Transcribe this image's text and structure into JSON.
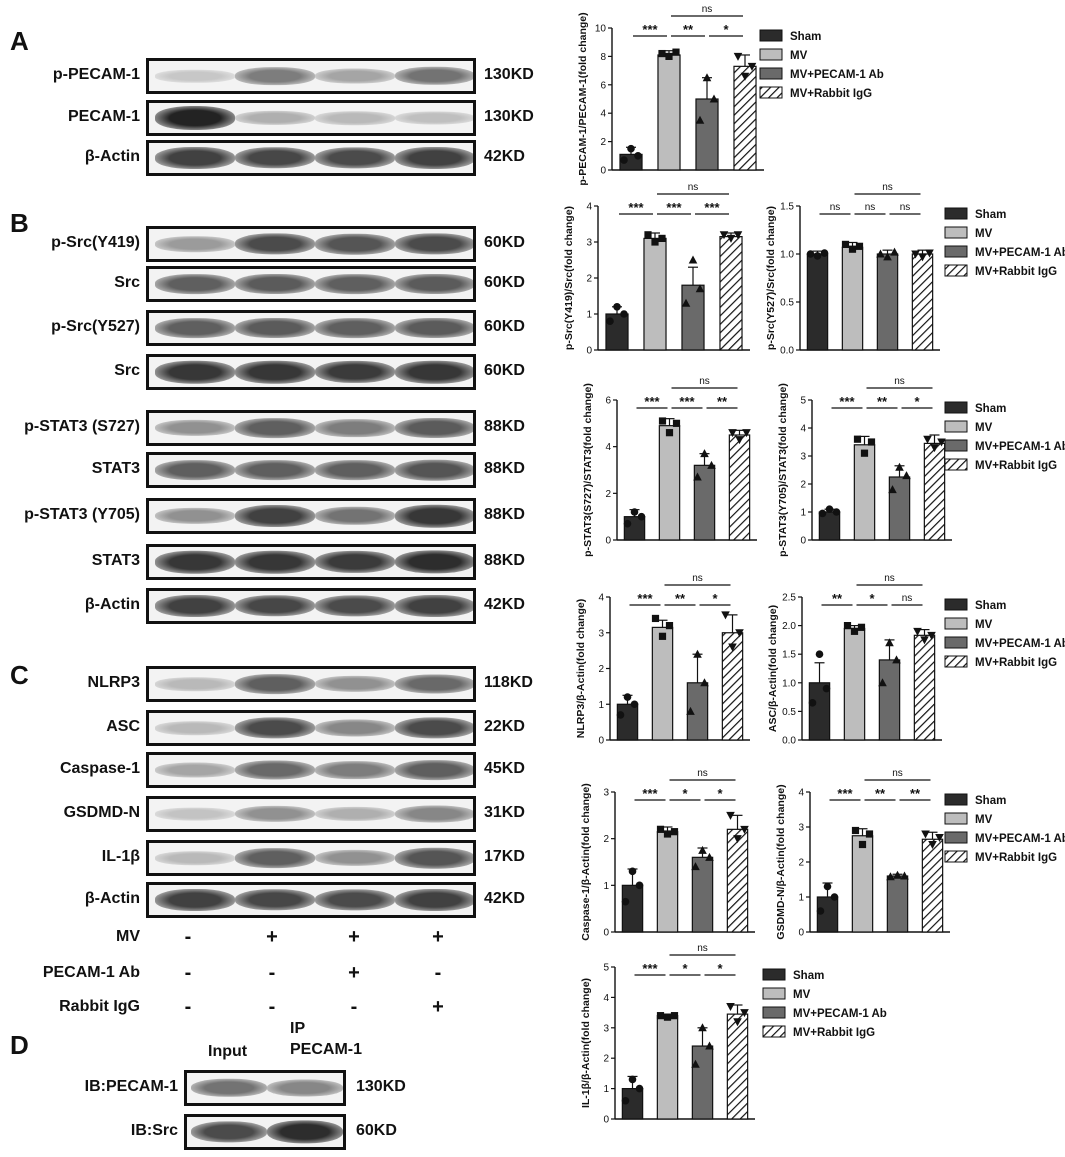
{
  "panels": {
    "A": "A",
    "B": "B",
    "C": "C",
    "D": "D"
  },
  "blots": [
    {
      "label": "p-PECAM-1",
      "kd": "130KD",
      "bands": [
        0.18,
        0.55,
        0.35,
        0.6
      ]
    },
    {
      "label": "PECAM-1",
      "kd": "130KD",
      "bands": [
        1.0,
        0.3,
        0.25,
        0.22
      ]
    },
    {
      "label": "β-Actin",
      "kd": "42KD",
      "bands": [
        0.85,
        0.82,
        0.8,
        0.85
      ]
    },
    {
      "label": "p-Src(Y419)",
      "kd": "60KD",
      "bands": [
        0.4,
        0.8,
        0.75,
        0.8
      ]
    },
    {
      "label": "Src",
      "kd": "60KD",
      "bands": [
        0.7,
        0.72,
        0.7,
        0.72
      ]
    },
    {
      "label": "p-Src(Y527)",
      "kd": "60KD",
      "bands": [
        0.7,
        0.72,
        0.7,
        0.72
      ]
    },
    {
      "label": "Src",
      "kd": "60KD",
      "bands": [
        0.9,
        0.9,
        0.88,
        0.9
      ]
    },
    {
      "label": "p-STAT3 (S727)",
      "kd": "88KD",
      "bands": [
        0.45,
        0.7,
        0.55,
        0.72
      ]
    },
    {
      "label": "STAT3",
      "kd": "88KD",
      "bands": [
        0.7,
        0.7,
        0.7,
        0.75
      ]
    },
    {
      "label": "p-STAT3 (Y705)",
      "kd": "88KD",
      "bands": [
        0.45,
        0.85,
        0.6,
        0.9
      ]
    },
    {
      "label": "STAT3",
      "kd": "88KD",
      "bands": [
        0.9,
        0.9,
        0.88,
        0.95
      ]
    },
    {
      "label": "β-Actin",
      "kd": "42KD",
      "bands": [
        0.85,
        0.82,
        0.8,
        0.85
      ]
    },
    {
      "label": "NLRP3",
      "kd": "118KD",
      "bands": [
        0.25,
        0.7,
        0.45,
        0.65
      ]
    },
    {
      "label": "ASC",
      "kd": "22KD",
      "bands": [
        0.25,
        0.8,
        0.5,
        0.8
      ]
    },
    {
      "label": "Caspase-1",
      "kd": "45KD",
      "bands": [
        0.35,
        0.65,
        0.55,
        0.7
      ]
    },
    {
      "label": "GSDMD-N",
      "kd": "31KD",
      "bands": [
        0.2,
        0.45,
        0.3,
        0.5
      ]
    },
    {
      "label": "IL-1β",
      "kd": "17KD",
      "bands": [
        0.25,
        0.7,
        0.45,
        0.75
      ]
    },
    {
      "label": "β-Actin",
      "kd": "42KD",
      "bands": [
        0.85,
        0.82,
        0.8,
        0.85
      ]
    }
  ],
  "treatments": [
    {
      "label": "MV",
      "values": [
        "-",
        "+",
        "+",
        "+"
      ]
    },
    {
      "label": "PECAM-1 Ab",
      "values": [
        "-",
        "-",
        "+",
        "-"
      ]
    },
    {
      "label": "Rabbit IgG",
      "values": [
        "-",
        "-",
        "-",
        "+"
      ]
    }
  ],
  "ip": {
    "input_label": "Input",
    "ip_label_1": "IP",
    "ip_label_2": "PECAM-1",
    "rows": [
      {
        "label": "IB:PECAM-1",
        "kd": "130KD",
        "bands": [
          0.6,
          0.5
        ]
      },
      {
        "label": "IB:Src",
        "kd": "60KD",
        "bands": [
          0.8,
          0.95
        ]
      }
    ]
  },
  "legend": [
    "Sham",
    "MV",
    "MV+PECAM-1 Ab",
    "MV+Rabbit IgG"
  ],
  "colors": {
    "sham": "#2b2b2b",
    "mv": "#bdbdbd",
    "ab": "#6a6a6a",
    "igg": "hatch"
  },
  "chart_data": [
    {
      "type": "bar",
      "ylabel": "p-PECAM-1/PECAM-1(fold change)",
      "ylim": [
        0,
        10
      ],
      "yticks": [
        0,
        2,
        4,
        6,
        8,
        10
      ],
      "categories": [
        "Sham",
        "MV",
        "MV+PECAM-1 Ab",
        "MV+Rabbit IgG"
      ],
      "values": [
        1.1,
        8.1,
        5.0,
        7.3
      ],
      "errors": [
        0.5,
        0.3,
        1.5,
        0.8
      ],
      "points": [
        [
          0.7,
          1.5,
          1.0
        ],
        [
          8.2,
          8.0,
          8.3
        ],
        [
          3.5,
          6.5,
          5.0
        ],
        [
          8.0,
          6.6,
          7.3
        ]
      ],
      "sig": [
        {
          "a": 0,
          "b": 1,
          "t": "***",
          "lvl": 0
        },
        {
          "a": 1,
          "b": 2,
          "t": "**",
          "lvl": 0
        },
        {
          "a": 2,
          "b": 3,
          "t": "*",
          "lvl": 0
        },
        {
          "a": 1,
          "b": 3,
          "t": "ns",
          "lvl": 1
        }
      ],
      "legend": true
    },
    {
      "type": "bar",
      "ylabel": "p-Src(Y419)/Src(fold change)",
      "ylim": [
        0,
        4
      ],
      "yticks": [
        0,
        1,
        2,
        3,
        4
      ],
      "categories": [
        "Sham",
        "MV",
        "MV+PECAM-1 Ab",
        "MV+Rabbit IgG"
      ],
      "values": [
        1.0,
        3.1,
        1.8,
        3.15
      ],
      "errors": [
        0.2,
        0.15,
        0.5,
        0.1
      ],
      "points": [
        [
          0.8,
          1.2,
          1.0
        ],
        [
          3.2,
          3.0,
          3.1
        ],
        [
          1.3,
          2.5,
          1.7
        ],
        [
          3.2,
          3.1,
          3.2
        ]
      ],
      "sig": [
        {
          "a": 0,
          "b": 1,
          "t": "***",
          "lvl": 0
        },
        {
          "a": 1,
          "b": 2,
          "t": "***",
          "lvl": 0
        },
        {
          "a": 2,
          "b": 3,
          "t": "***",
          "lvl": 0
        },
        {
          "a": 1,
          "b": 3,
          "t": "ns",
          "lvl": 1
        }
      ],
      "legend": false
    },
    {
      "type": "bar",
      "ylabel": "p-Src(Y527)/Src(fold change)",
      "ylim": [
        0,
        1.5
      ],
      "yticks": [
        0.0,
        0.5,
        1.0,
        1.5
      ],
      "categories": [
        "Sham",
        "MV",
        "MV+PECAM-1 Ab",
        "MV+Rabbit IgG"
      ],
      "values": [
        1.0,
        1.07,
        1.0,
        1.0
      ],
      "errors": [
        0.03,
        0.05,
        0.04,
        0.04
      ],
      "points": [
        [
          1.0,
          0.98,
          1.01
        ],
        [
          1.1,
          1.05,
          1.08
        ],
        [
          1.0,
          0.97,
          1.02
        ],
        [
          1.0,
          0.97,
          1.01
        ]
      ],
      "sig": [
        {
          "a": 0,
          "b": 1,
          "t": "ns",
          "lvl": 0
        },
        {
          "a": 1,
          "b": 2,
          "t": "ns",
          "lvl": 0
        },
        {
          "a": 2,
          "b": 3,
          "t": "ns",
          "lvl": 0
        },
        {
          "a": 1,
          "b": 3,
          "t": "ns",
          "lvl": 1
        }
      ],
      "legend": true
    },
    {
      "type": "bar",
      "ylabel": "p-STAT3(S727)/STAT3(fold change)",
      "ylim": [
        0,
        6
      ],
      "yticks": [
        0,
        2,
        4,
        6
      ],
      "categories": [
        "Sham",
        "MV",
        "MV+PECAM-1 Ab",
        "MV+Rabbit IgG"
      ],
      "values": [
        1.0,
        4.9,
        3.2,
        4.5
      ],
      "errors": [
        0.3,
        0.3,
        0.5,
        0.2
      ],
      "points": [
        [
          0.7,
          1.2,
          1.0
        ],
        [
          5.1,
          4.6,
          5.0
        ],
        [
          2.7,
          3.7,
          3.2
        ],
        [
          4.6,
          4.3,
          4.6
        ]
      ],
      "sig": [
        {
          "a": 0,
          "b": 1,
          "t": "***",
          "lvl": 0
        },
        {
          "a": 1,
          "b": 2,
          "t": "***",
          "lvl": 0
        },
        {
          "a": 2,
          "b": 3,
          "t": "**",
          "lvl": 0
        },
        {
          "a": 1,
          "b": 3,
          "t": "ns",
          "lvl": 1
        }
      ],
      "legend": false
    },
    {
      "type": "bar",
      "ylabel": "p-STAT3(Y705)/STAT3(fold change)",
      "ylim": [
        0,
        5
      ],
      "yticks": [
        0,
        1,
        2,
        3,
        4,
        5
      ],
      "categories": [
        "Sham",
        "MV",
        "MV+PECAM-1 Ab",
        "MV+Rabbit IgG"
      ],
      "values": [
        1.0,
        3.4,
        2.25,
        3.45
      ],
      "errors": [
        0.1,
        0.3,
        0.4,
        0.3
      ],
      "points": [
        [
          0.95,
          1.1,
          1.0
        ],
        [
          3.6,
          3.1,
          3.5
        ],
        [
          1.8,
          2.6,
          2.3
        ],
        [
          3.6,
          3.3,
          3.5
        ]
      ],
      "sig": [
        {
          "a": 0,
          "b": 1,
          "t": "***",
          "lvl": 0
        },
        {
          "a": 1,
          "b": 2,
          "t": "**",
          "lvl": 0
        },
        {
          "a": 2,
          "b": 3,
          "t": "*",
          "lvl": 0
        },
        {
          "a": 1,
          "b": 3,
          "t": "ns",
          "lvl": 1
        }
      ],
      "legend": true
    },
    {
      "type": "bar",
      "ylabel": "NLRP3/β-Actin(fold change)",
      "ylim": [
        0,
        4
      ],
      "yticks": [
        0,
        1,
        2,
        3,
        4
      ],
      "categories": [
        "Sham",
        "MV",
        "MV+PECAM-1 Ab",
        "MV+Rabbit IgG"
      ],
      "values": [
        1.0,
        3.15,
        1.6,
        3.0
      ],
      "errors": [
        0.25,
        0.2,
        0.8,
        0.5
      ],
      "points": [
        [
          0.7,
          1.2,
          1.0
        ],
        [
          3.4,
          2.9,
          3.2
        ],
        [
          0.8,
          2.4,
          1.6
        ],
        [
          3.5,
          2.6,
          3.0
        ]
      ],
      "sig": [
        {
          "a": 0,
          "b": 1,
          "t": "***",
          "lvl": 0
        },
        {
          "a": 1,
          "b": 2,
          "t": "**",
          "lvl": 0
        },
        {
          "a": 2,
          "b": 3,
          "t": "*",
          "lvl": 0
        },
        {
          "a": 1,
          "b": 3,
          "t": "ns",
          "lvl": 1
        }
      ],
      "legend": false
    },
    {
      "type": "bar",
      "ylabel": "ASC/β-Actin(fold change)",
      "ylim": [
        0,
        2.5
      ],
      "yticks": [
        0.0,
        0.5,
        1.0,
        1.5,
        2.0,
        2.5
      ],
      "categories": [
        "Sham",
        "MV",
        "MV+PECAM-1 Ab",
        "MV+Rabbit IgG"
      ],
      "values": [
        1.0,
        1.95,
        1.4,
        1.83
      ],
      "errors": [
        0.35,
        0.05,
        0.35,
        0.1
      ],
      "points": [
        [
          0.65,
          1.5,
          0.9
        ],
        [
          2.0,
          1.9,
          1.97
        ],
        [
          1.0,
          1.7,
          1.4
        ],
        [
          1.9,
          1.75,
          1.83
        ]
      ],
      "sig": [
        {
          "a": 0,
          "b": 1,
          "t": "**",
          "lvl": 0
        },
        {
          "a": 1,
          "b": 2,
          "t": "*",
          "lvl": 0
        },
        {
          "a": 2,
          "b": 3,
          "t": "ns",
          "lvl": 0
        },
        {
          "a": 1,
          "b": 3,
          "t": "ns",
          "lvl": 1
        }
      ],
      "legend": true
    },
    {
      "type": "bar",
      "ylabel": "Caspase-1/β-Actin(fold change)",
      "ylim": [
        0,
        3
      ],
      "yticks": [
        0,
        1,
        2,
        3
      ],
      "categories": [
        "Sham",
        "MV",
        "MV+PECAM-1 Ab",
        "MV+Rabbit IgG"
      ],
      "values": [
        1.0,
        2.15,
        1.6,
        2.2
      ],
      "errors": [
        0.35,
        0.1,
        0.2,
        0.3
      ],
      "points": [
        [
          0.65,
          1.3,
          1.0
        ],
        [
          2.2,
          2.1,
          2.15
        ],
        [
          1.4,
          1.75,
          1.6
        ],
        [
          2.5,
          2.0,
          2.2
        ]
      ],
      "sig": [
        {
          "a": 0,
          "b": 1,
          "t": "***",
          "lvl": 0
        },
        {
          "a": 1,
          "b": 2,
          "t": "*",
          "lvl": 0
        },
        {
          "a": 2,
          "b": 3,
          "t": "*",
          "lvl": 0
        },
        {
          "a": 1,
          "b": 3,
          "t": "ns",
          "lvl": 1
        }
      ],
      "legend": false
    },
    {
      "type": "bar",
      "ylabel": "GSDMD-N/β-Actin(fold change)",
      "ylim": [
        0,
        4
      ],
      "yticks": [
        0,
        1,
        2,
        3,
        4
      ],
      "categories": [
        "Sham",
        "MV",
        "MV+PECAM-1 Ab",
        "MV+Rabbit IgG"
      ],
      "values": [
        1.0,
        2.75,
        1.6,
        2.65
      ],
      "errors": [
        0.4,
        0.2,
        0.05,
        0.2
      ],
      "points": [
        [
          0.6,
          1.3,
          1.0
        ],
        [
          2.9,
          2.5,
          2.8
        ],
        [
          1.58,
          1.62,
          1.6
        ],
        [
          2.8,
          2.5,
          2.7
        ]
      ],
      "sig": [
        {
          "a": 0,
          "b": 1,
          "t": "***",
          "lvl": 0
        },
        {
          "a": 1,
          "b": 2,
          "t": "**",
          "lvl": 0
        },
        {
          "a": 2,
          "b": 3,
          "t": "**",
          "lvl": 0
        },
        {
          "a": 1,
          "b": 3,
          "t": "ns",
          "lvl": 1
        }
      ],
      "legend": true
    },
    {
      "type": "bar",
      "ylabel": "IL-1β/β-Actin(fold change)",
      "ylim": [
        0,
        5
      ],
      "yticks": [
        0,
        1,
        2,
        3,
        4,
        5
      ],
      "categories": [
        "Sham",
        "MV",
        "MV+PECAM-1 Ab",
        "MV+Rabbit IgG"
      ],
      "values": [
        1.0,
        3.4,
        2.4,
        3.45
      ],
      "errors": [
        0.4,
        0.05,
        0.6,
        0.3
      ],
      "points": [
        [
          0.6,
          1.3,
          1.0
        ],
        [
          3.4,
          3.35,
          3.4
        ],
        [
          1.8,
          3.0,
          2.4
        ],
        [
          3.7,
          3.2,
          3.5
        ]
      ],
      "sig": [
        {
          "a": 0,
          "b": 1,
          "t": "***",
          "lvl": 0
        },
        {
          "a": 1,
          "b": 2,
          "t": "*",
          "lvl": 0
        },
        {
          "a": 2,
          "b": 3,
          "t": "*",
          "lvl": 0
        },
        {
          "a": 1,
          "b": 3,
          "t": "ns",
          "lvl": 1
        }
      ],
      "legend": true
    }
  ]
}
